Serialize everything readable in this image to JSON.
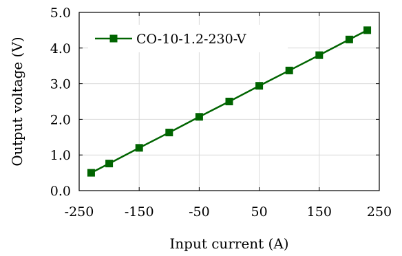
{
  "chart_data": {
    "type": "line",
    "title": "",
    "xlabel": "Input current (A)",
    "ylabel": "Output voltage (V)",
    "xlim": [
      -250,
      250
    ],
    "ylim": [
      0.0,
      5.0
    ],
    "xticks": [
      -250,
      -150,
      -50,
      50,
      150,
      250
    ],
    "xtick_labels": [
      "-250",
      "-150",
      "-50",
      "50",
      "150",
      "250"
    ],
    "yticks": [
      0.0,
      1.0,
      2.0,
      3.0,
      4.0,
      5.0
    ],
    "ytick_labels": [
      "0.0",
      "1.0",
      "2.0",
      "3.0",
      "4.0",
      "5.0"
    ],
    "grid": true,
    "legend_position": "top-left",
    "series": [
      {
        "name": "CO-10-1.2-230-V",
        "color": "#006400",
        "marker": "square",
        "x": [
          -230,
          -200,
          -150,
          -100,
          -50,
          0,
          50,
          100,
          150,
          200,
          230
        ],
        "y": [
          0.5,
          0.76,
          1.2,
          1.63,
          2.07,
          2.5,
          2.94,
          3.37,
          3.8,
          4.24,
          4.5
        ]
      }
    ]
  }
}
